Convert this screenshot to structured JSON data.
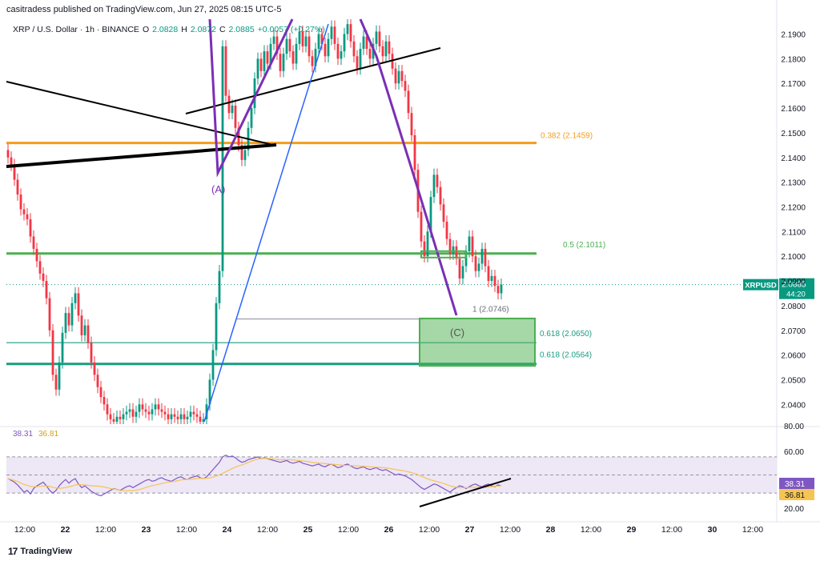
{
  "header": {
    "published": "casitradess published on TradingView.com, Jun 27, 2025 08:15 UTC-5"
  },
  "legend": {
    "symbol": "XRP / U.S. Dollar · 1h · BINANCE",
    "o_label": "O",
    "o_value": "2.0828",
    "h_label": "H",
    "h_value": "2.0872",
    "c_label": "C",
    "c_value": "2.0885",
    "change": "+0.0057 (+0.27%)"
  },
  "footer": {
    "brand": "TradingView",
    "logo": "17"
  },
  "colors": {
    "up": "#089981",
    "down": "#f23645",
    "fib_orange": "#f59d1a",
    "fib_green": "#4caf50",
    "teal": "#1a9c82",
    "wave": "#7b2fb5",
    "trend": "#000000",
    "blue_line": "#2962ff",
    "rsi_line": "#7e57c2",
    "rsi_ma": "#f6c453",
    "rsi_band": "#ede7f6"
  },
  "chart_data": [
    {
      "type": "candlestick",
      "title": "",
      "y_axis": {
        "range": [
          2.032,
          2.196
        ],
        "ticks": [
          "2.1900",
          "2.1800",
          "2.1700",
          "2.1600",
          "2.1500",
          "2.1400",
          "2.1300",
          "2.1200",
          "2.1100",
          "2.1000",
          "2.0900",
          "2.0800",
          "2.0700",
          "2.0600",
          "2.0500",
          "2.0400"
        ]
      },
      "x_axis": {
        "ticks": [
          "12:00",
          "22",
          "12:00",
          "23",
          "12:00",
          "24",
          "12:00",
          "25",
          "12:00",
          "26",
          "12:00",
          "27",
          "12:00",
          "28",
          "12:00",
          "29",
          "12:00",
          "30",
          "12:00"
        ]
      },
      "last_price": {
        "symbol": "XRPUSD",
        "price": "2.0885",
        "countdown": "44:20"
      },
      "fib_levels": [
        {
          "label": "0.382 (2.1459)",
          "price": 2.1459,
          "color": "orange"
        },
        {
          "label": "0.5 (2.1011)",
          "price": 2.1011,
          "color": "green"
        },
        {
          "label": "0.618 (2.0650)",
          "price": 2.065,
          "color": "teal-thin"
        },
        {
          "label": "0.618 (2.0564)",
          "price": 2.0564,
          "color": "teal-thick"
        },
        {
          "label": "1 (2.0746)",
          "price": 2.0746,
          "color": "gray"
        }
      ],
      "wave_labels": [
        "(A)",
        "(C)"
      ],
      "target_zone": {
        "top": 2.0748,
        "bottom": 2.0556
      },
      "closes": [
        2.14,
        2.137,
        2.131,
        2.125,
        2.119,
        2.117,
        2.115,
        2.108,
        2.103,
        2.098,
        2.093,
        2.09,
        2.083,
        2.07,
        2.052,
        2.046,
        2.057,
        2.069,
        2.077,
        2.072,
        2.081,
        2.085,
        2.076,
        2.068,
        2.072,
        2.065,
        2.057,
        2.052,
        2.047,
        2.043,
        2.04,
        2.036,
        2.034,
        2.033,
        2.035,
        2.034,
        2.036,
        2.037,
        2.038,
        2.035,
        2.037,
        2.04,
        2.038,
        2.037,
        2.036,
        2.038,
        2.04,
        2.038,
        2.037,
        2.036,
        2.034,
        2.036,
        2.035,
        2.034,
        2.036,
        2.034,
        2.035,
        2.037,
        2.036,
        2.035,
        2.033,
        2.034,
        2.04,
        2.05,
        2.062,
        2.081,
        2.094,
        2.185,
        2.165,
        2.158,
        2.161,
        2.152,
        2.145,
        2.139,
        2.143,
        2.152,
        2.16,
        2.172,
        2.18,
        2.175,
        2.183,
        2.178,
        2.186,
        2.189,
        2.182,
        2.175,
        2.182,
        2.188,
        2.183,
        2.178,
        2.186,
        2.191,
        2.185,
        2.189,
        2.181,
        2.177,
        2.184,
        2.19,
        2.186,
        2.181,
        2.188,
        2.193,
        2.186,
        2.18,
        2.183,
        2.19,
        2.194,
        2.187,
        2.181,
        2.176,
        2.184,
        2.189,
        2.184,
        2.18,
        2.186,
        2.191,
        2.185,
        2.181,
        2.187,
        2.182,
        2.176,
        2.17,
        2.175,
        2.171,
        2.167,
        2.158,
        2.149,
        2.135,
        2.118,
        2.106,
        2.1,
        2.11,
        2.124,
        2.133,
        2.128,
        2.121,
        2.114,
        2.107,
        2.101,
        2.104,
        2.099,
        2.091,
        2.096,
        2.102,
        2.108,
        2.1,
        2.094,
        2.097,
        2.103,
        2.096,
        2.09,
        2.092,
        2.088,
        2.085,
        2.0885
      ],
      "rsi": {
        "range": [
          0,
          100
        ],
        "ticks": [
          "80.00",
          "60.00",
          "20.00"
        ],
        "rsi_value": "38.31",
        "ma_value": "36.81",
        "levels": [
          70,
          50,
          30
        ],
        "values": [
          46,
          44,
          42,
          39,
          35,
          31,
          33,
          29,
          35,
          38,
          40,
          42,
          38,
          33,
          30,
          33,
          38,
          42,
          45,
          41,
          44,
          46,
          40,
          36,
          38,
          35,
          32,
          30,
          28,
          27,
          29,
          31,
          33,
          35,
          34,
          33,
          35,
          37,
          38,
          36,
          38,
          40,
          42,
          44,
          45,
          43,
          44,
          46,
          47,
          45,
          44,
          43,
          45,
          47,
          48,
          46,
          45,
          47,
          48,
          49,
          47,
          46,
          48,
          52,
          56,
          60,
          64,
          70,
          72,
          70,
          71,
          69,
          66,
          64,
          65,
          67,
          68,
          69,
          70,
          68,
          69,
          68,
          67,
          66,
          65,
          64,
          65,
          66,
          64,
          63,
          64,
          65,
          63,
          62,
          61,
          60,
          61,
          62,
          60,
          59,
          61,
          62,
          60,
          58,
          59,
          61,
          62,
          60,
          58,
          57,
          58,
          59,
          57,
          56,
          57,
          58,
          56,
          55,
          56,
          54,
          52,
          50,
          51,
          50,
          49,
          47,
          45,
          42,
          39,
          36,
          34,
          36,
          38,
          40,
          39,
          37,
          35,
          33,
          31,
          34,
          36,
          38,
          37,
          35,
          37,
          39,
          40,
          38,
          37,
          39,
          40,
          38,
          37,
          39,
          38
        ]
      }
    }
  ]
}
